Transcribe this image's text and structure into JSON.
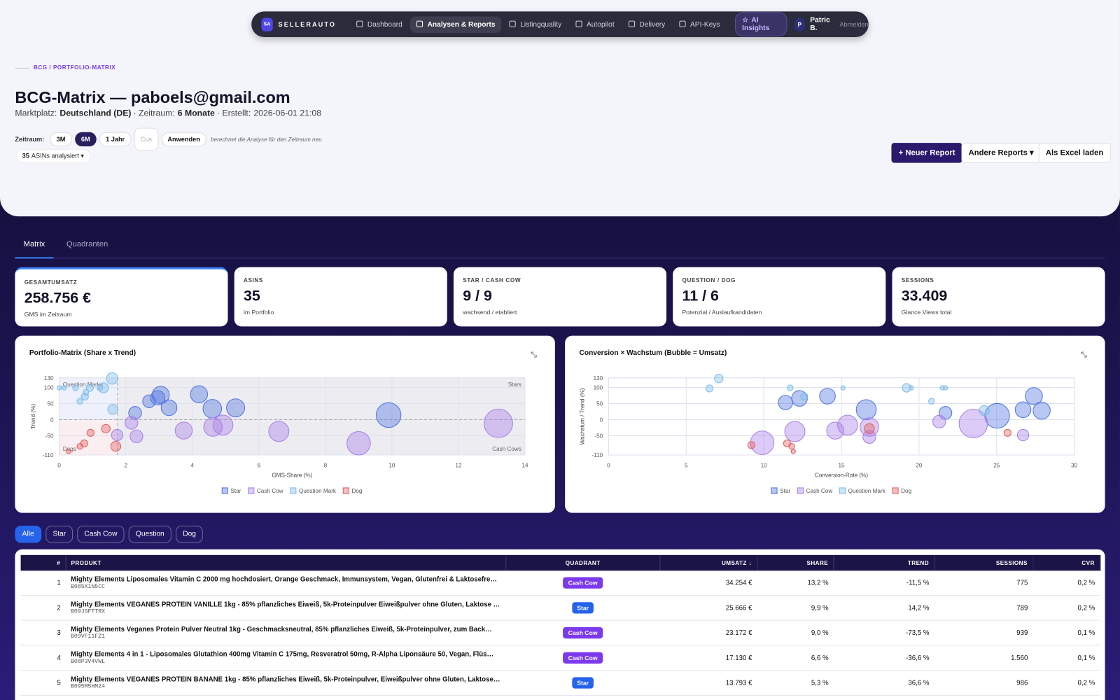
{
  "nav": {
    "badge": "SA",
    "brand": "SELLERAUTO",
    "items": [
      "Dashboard",
      "Analysen & Reports",
      "Listingquality",
      "Autopilot",
      "Delivery",
      "API-Keys"
    ],
    "active": 1,
    "ai": "AI Insights",
    "user_badge": "P",
    "user": "Patric B.",
    "logout": "Abmelden"
  },
  "header": {
    "breadcrumb": "BCG / PORTFOLIO-MATRIX",
    "title": "BCG-Matrix — paboels@gmail.com",
    "meta": [
      {
        "label": "Marktplatz:",
        "value": "Deutschland (DE)",
        "bold": true
      },
      {
        "label": "· Zeitraum:",
        "value": "6 Monate",
        "bold": true
      },
      {
        "label": "· Erstellt:",
        "value": "2026-06-01 21:08",
        "bold": false
      }
    ],
    "period_label": "Zeitraum:",
    "periods": [
      "3M",
      "6M",
      "1 Jahr"
    ],
    "period_active": 1,
    "custom": "Cus",
    "apply": "Anwenden",
    "hint": "berechnet die Analyse für den Zeitraum neu",
    "asin_count": 35,
    "asin_text": "ASINs analysiert ▾",
    "actions": [
      "+ Neuer Report",
      "Andere Reports ▾",
      "Als Excel laden"
    ]
  },
  "tabs": [
    "Matrix",
    "Quadranten"
  ],
  "kpis": [
    {
      "label": "GESAMTUMSATZ",
      "value": "258.756 €",
      "sub": "GMS im Zeitraum"
    },
    {
      "label": "ASINS",
      "value": "35",
      "sub": "im Portfolio"
    },
    {
      "label": "STAR / CASH COW",
      "value": "9 / 9",
      "sub": "wachsend / etabliert"
    },
    {
      "label": "QUESTION / DOG",
      "value": "11 / 6",
      "sub": "Potenzial / Auslaufkandidaten"
    },
    {
      "label": "SESSIONS",
      "value": "33.409",
      "sub": "Glance Views total"
    }
  ],
  "chart_data": [
    {
      "type": "bubble",
      "title": "Portfolio-Matrix (Share x Trend)",
      "x_label": "GMS-Share (%)",
      "y_label": "Trend (%)",
      "xlim": [
        0,
        14
      ],
      "xticks": [
        0,
        2,
        4,
        6,
        8,
        10,
        12,
        14
      ],
      "ylim": [
        -110,
        130
      ],
      "yticks": [
        130,
        100,
        50,
        0,
        -50,
        -110
      ],
      "grid": true,
      "quadrant_split": {
        "x": 1.75,
        "y": 0
      },
      "quadrant_labels": {
        "top_left": "Question Marks",
        "top_right": "Stars",
        "bottom_left": "Dogs",
        "bottom_right": "Cash Cows"
      },
      "series": [
        {
          "name": "Star",
          "color": "#4f74e0",
          "x": [
            9.9,
            5.3,
            4.6,
            4.2,
            3.05,
            2.96,
            2.7,
            3.3,
            2.28
          ],
          "values": [
            14.2,
            36.6,
            34,
            79,
            77,
            68,
            57,
            37,
            21
          ],
          "sizes": [
            25666,
            13793,
            14500,
            12300,
            12300,
            8600,
            6900,
            10400,
            6900
          ]
        },
        {
          "name": "Cash Cow",
          "color": "#a77ee8",
          "x": [
            13.2,
            9.0,
            6.6,
            4.92,
            4.62,
            3.74,
            2.32,
            1.74,
            2.17
          ],
          "values": [
            -11.5,
            -73.5,
            -36.6,
            -17,
            -23,
            -34,
            -52,
            -48,
            -10
          ],
          "sizes": [
            34254,
            23172,
            17130,
            16800,
            14500,
            12300,
            6900,
            5500,
            6900
          ]
        },
        {
          "name": "Question Mark",
          "color": "#7cbcec",
          "x": [
            0.0,
            0.49,
            0.92,
            1.33,
            0.77,
            0.62,
            1.61,
            1.59,
            0.15,
            0.8,
            1.22
          ],
          "values": [
            99,
            99,
            99,
            99,
            72,
            57,
            32,
            128,
            99,
            85,
            99
          ],
          "sizes": [
            800,
            1400,
            2100,
            4200,
            2100,
            1400,
            4200,
            5500,
            800,
            1400,
            1400
          ]
        },
        {
          "name": "Dog",
          "color": "#e06060",
          "x": [
            0.94,
            1.4,
            1.7,
            0.75,
            0.28,
            0.62
          ],
          "values": [
            -41,
            -28,
            -83,
            -74,
            -99,
            -83
          ],
          "sizes": [
            2100,
            3100,
            4200,
            2100,
            800,
            1400
          ]
        }
      ]
    },
    {
      "type": "bubble",
      "title": "Conversion × Wachstum (Bubble = Umsatz)",
      "x_label": "Conversion-Rate (%)",
      "y_label": "Wachstum / Trend (%)",
      "xlim": [
        0,
        30
      ],
      "xticks": [
        0,
        5,
        10,
        15,
        20,
        25,
        30
      ],
      "ylim": [
        -110,
        130
      ],
      "yticks": [
        130,
        100,
        50,
        0,
        -50,
        -110
      ],
      "grid": true,
      "series": [
        {
          "name": "Star",
          "color": "#4f74e0",
          "x": [
            25.03,
            27.4,
            27.9,
            26.7,
            16.6,
            14.1,
            12.3,
            11.4,
            21.7
          ],
          "values": [
            12,
            73,
            28,
            31,
            31,
            73,
            66,
            53,
            21
          ],
          "sizes": [
            25666,
            12300,
            12300,
            10400,
            16800,
            10400,
            10400,
            8600,
            6900
          ]
        },
        {
          "name": "Cash Cow",
          "color": "#a77ee8",
          "x": [
            23.5,
            9.9,
            12.0,
            15.4,
            16.8,
            14.6,
            16.8,
            26.7,
            21.3
          ],
          "values": [
            -12,
            -72,
            -37,
            -17,
            -23,
            -34,
            -54,
            -48,
            -6
          ],
          "sizes": [
            34254,
            23172,
            17130,
            16800,
            14500,
            12300,
            6900,
            5500,
            6900
          ]
        },
        {
          "name": "Question Mark",
          "color": "#7cbcec",
          "x": [
            7.1,
            6.5,
            11.7,
            15.1,
            19.2,
            19.5,
            21.5,
            21.7,
            20.8,
            12.6,
            24.2
          ],
          "values": [
            128,
            97,
            99,
            99,
            99,
            99,
            99,
            99,
            57,
            72,
            28
          ],
          "sizes": [
            3100,
            2100,
            1400,
            800,
            3100,
            800,
            800,
            800,
            1400,
            2100,
            4200
          ]
        },
        {
          "name": "Dog",
          "color": "#e06060",
          "x": [
            16.8,
            25.7,
            11.5,
            9.2,
            11.9,
            11.8
          ],
          "values": [
            -28,
            -41,
            -74,
            -79,
            -99,
            -83
          ],
          "sizes": [
            4200,
            2100,
            2100,
            2100,
            800,
            1400
          ]
        }
      ]
    }
  ],
  "filters": [
    "Alle",
    "Star",
    "Cash Cow",
    "Question",
    "Dog"
  ],
  "filter_active": 0,
  "table": {
    "headers": [
      "#",
      "PRODUKT",
      "QUADRANT",
      "UMSATZ ↓",
      "SHARE",
      "TREND",
      "SESSIONS",
      "CVR"
    ],
    "rows": [
      [
        "1",
        "Mighty Elements Liposomales Vitamin C 2000 mg hochdosiert, Orange Geschmack, Immunsystem, Vegan, Glutenfrei & Laktosefre…",
        "B085X1N5CC",
        "Cash Cow",
        "34.254 €",
        "13,2 %",
        "-11,5 %",
        "775",
        "0,2 %"
      ],
      [
        "2",
        "Mighty Elements VEGANES PROTEIN VANILLE 1kg - 85% pflanzliches Eiweiß, 5k-Proteinpulver Eiweißpulver ohne Gluten, Laktose …",
        "B09JGFTTRX",
        "Star",
        "25.666 €",
        "9,9 %",
        "14,2 %",
        "789",
        "0,2 %"
      ],
      [
        "3",
        "Mighty Elements Veganes Protein Pulver Neutral 1kg - Geschmacksneutral, 85% pflanzliches Eiweiß, 5k-Proteinpulver, zum Back…",
        "B09VF11FZ1",
        "Cash Cow",
        "23.172 €",
        "9,0 %",
        "-73,5 %",
        "939",
        "0,1 %"
      ],
      [
        "4",
        "Mighty Elements 4 in 1 - Liposomales Glutathion 400mg Vitamin C 175mg, Resveratrol 50mg, R-Alpha Liponsäure 50, Vegan, Flüs…",
        "B08P3V4VWL",
        "Cash Cow",
        "17.130 €",
        "6,6 %",
        "-36,6 %",
        "1.560",
        "0,1 %"
      ],
      [
        "5",
        "Mighty Elements VEGANES PROTEIN BANANE 1kg - 85% pflanzliches Eiweiß, 5k-Proteinpulver, Eiweißpulver ohne Gluten, Laktose…",
        "B095M5HM24",
        "Star",
        "13.793 €",
        "5,3 %",
        "36,6 %",
        "986",
        "0,2 %"
      ]
    ]
  }
}
